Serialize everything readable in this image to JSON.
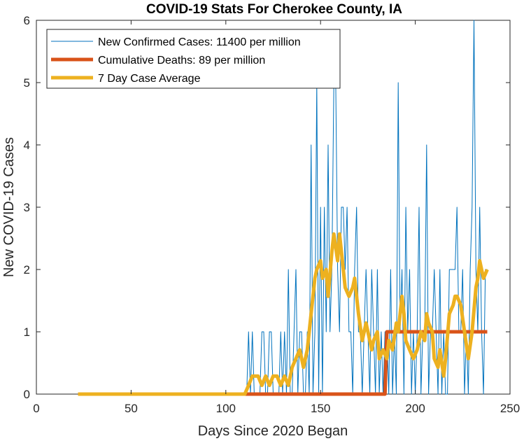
{
  "chart_data": {
    "type": "line",
    "title": "COVID-19 Stats For Cherokee County, IA",
    "xlabel": "Days Since 2020 Began",
    "ylabel": "New COVID-19 Cases",
    "xlim": [
      0,
      250
    ],
    "ylim": [
      0,
      6
    ],
    "xticks": [
      0,
      50,
      100,
      150,
      200,
      250
    ],
    "yticks": [
      0,
      1,
      2,
      3,
      4,
      5,
      6
    ],
    "grid": false,
    "legend_position": "top-left",
    "series": [
      {
        "name": "New Confirmed Cases: 11400 per million",
        "color": "#0072BD",
        "line_width": "thin",
        "points": [
          [
            22,
            0
          ],
          [
            111,
            0
          ],
          [
            112,
            1
          ],
          [
            113,
            0
          ],
          [
            114,
            1
          ],
          [
            115,
            0
          ],
          [
            116,
            0
          ],
          [
            117,
            0
          ],
          [
            118,
            0
          ],
          [
            119,
            1
          ],
          [
            120,
            1
          ],
          [
            121,
            0
          ],
          [
            122,
            0
          ],
          [
            123,
            1
          ],
          [
            124,
            1
          ],
          [
            125,
            0
          ],
          [
            126,
            0
          ],
          [
            127,
            0
          ],
          [
            128,
            0
          ],
          [
            129,
            1
          ],
          [
            130,
            0
          ],
          [
            131,
            1
          ],
          [
            132,
            0
          ],
          [
            133,
            2
          ],
          [
            134,
            0
          ],
          [
            135,
            0
          ],
          [
            136,
            1
          ],
          [
            137,
            2
          ],
          [
            138,
            0
          ],
          [
            139,
            1
          ],
          [
            140,
            1
          ],
          [
            141,
            0
          ],
          [
            142,
            0
          ],
          [
            143,
            1
          ],
          [
            144,
            0
          ],
          [
            145,
            4
          ],
          [
            146,
            0
          ],
          [
            147,
            1
          ],
          [
            148,
            5
          ],
          [
            149,
            0
          ],
          [
            150,
            3
          ],
          [
            151,
            0
          ],
          [
            152,
            3
          ],
          [
            153,
            1
          ],
          [
            154,
            4
          ],
          [
            155,
            1
          ],
          [
            156,
            2
          ],
          [
            157,
            5
          ],
          [
            158,
            5
          ],
          [
            159,
            2
          ],
          [
            160,
            1
          ],
          [
            161,
            3
          ],
          [
            162,
            3
          ],
          [
            163,
            2
          ],
          [
            164,
            3
          ],
          [
            165,
            1
          ],
          [
            166,
            1
          ],
          [
            167,
            0
          ],
          [
            168,
            2
          ],
          [
            169,
            3
          ],
          [
            170,
            1
          ],
          [
            171,
            1
          ],
          [
            172,
            0
          ],
          [
            173,
            1
          ],
          [
            174,
            2
          ],
          [
            175,
            1
          ],
          [
            176,
            0
          ],
          [
            177,
            2
          ],
          [
            178,
            1
          ],
          [
            179,
            0
          ],
          [
            180,
            2
          ],
          [
            181,
            0
          ],
          [
            182,
            1
          ],
          [
            183,
            0
          ],
          [
            184,
            1
          ],
          [
            185,
            1
          ],
          [
            186,
            0
          ],
          [
            187,
            2
          ],
          [
            188,
            0
          ],
          [
            189,
            1
          ],
          [
            190,
            0
          ],
          [
            191,
            5
          ],
          [
            192,
            1
          ],
          [
            193,
            2
          ],
          [
            194,
            0
          ],
          [
            195,
            3
          ],
          [
            196,
            1
          ],
          [
            197,
            2
          ],
          [
            198,
            0
          ],
          [
            199,
            1
          ],
          [
            200,
            0
          ],
          [
            201,
            1
          ],
          [
            202,
            3
          ],
          [
            203,
            0
          ],
          [
            204,
            1
          ],
          [
            205,
            1
          ],
          [
            206,
            4
          ],
          [
            207,
            0
          ],
          [
            208,
            1
          ],
          [
            209,
            1
          ],
          [
            210,
            2
          ],
          [
            211,
            1
          ],
          [
            212,
            0
          ],
          [
            213,
            2
          ],
          [
            214,
            0
          ],
          [
            215,
            1
          ],
          [
            216,
            0
          ],
          [
            217,
            0
          ],
          [
            218,
            2
          ],
          [
            219,
            2
          ],
          [
            220,
            2
          ],
          [
            221,
            2
          ],
          [
            222,
            3
          ],
          [
            223,
            1
          ],
          [
            224,
            1
          ],
          [
            225,
            2
          ],
          [
            226,
            0
          ],
          [
            227,
            1
          ],
          [
            228,
            0
          ],
          [
            229,
            2
          ],
          [
            230,
            3
          ],
          [
            231,
            6
          ],
          [
            232,
            2
          ],
          [
            233,
            1
          ],
          [
            234,
            3
          ],
          [
            235,
            1
          ],
          [
            236,
            0
          ],
          [
            237,
            2
          ],
          [
            238,
            2
          ]
        ]
      },
      {
        "name": "Cumulative Deaths: 89 per million",
        "color": "#D95319",
        "line_width": "thick",
        "points": [
          [
            22,
            0
          ],
          [
            184,
            0
          ],
          [
            185,
            1
          ],
          [
            238,
            1
          ]
        ]
      },
      {
        "name": "7 Day Case Average",
        "color": "#EDB120",
        "line_width": "thick",
        "points": [
          [
            22,
            0
          ],
          [
            110,
            0
          ],
          [
            112,
            0.14
          ],
          [
            114,
            0.29
          ],
          [
            117,
            0.29
          ],
          [
            119,
            0.14
          ],
          [
            121,
            0.29
          ],
          [
            123,
            0.14
          ],
          [
            125,
            0.29
          ],
          [
            127,
            0.29
          ],
          [
            129,
            0.14
          ],
          [
            131,
            0.29
          ],
          [
            133,
            0.14
          ],
          [
            135,
            0.43
          ],
          [
            137,
            0.57
          ],
          [
            139,
            0.71
          ],
          [
            141,
            0.43
          ],
          [
            143,
            0.71
          ],
          [
            145,
            1.29
          ],
          [
            147,
            1.86
          ],
          [
            148,
            2.0
          ],
          [
            150,
            2.14
          ],
          [
            151,
            1.86
          ],
          [
            153,
            2.0
          ],
          [
            154,
            1.57
          ],
          [
            156,
            2.29
          ],
          [
            157,
            2.57
          ],
          [
            159,
            2.14
          ],
          [
            160,
            2.57
          ],
          [
            161,
            2.29
          ],
          [
            163,
            1.71
          ],
          [
            165,
            1.57
          ],
          [
            167,
            1.71
          ],
          [
            168,
            1.86
          ],
          [
            170,
            1.29
          ],
          [
            172,
            0.86
          ],
          [
            174,
            1.14
          ],
          [
            175,
            1.0
          ],
          [
            177,
            0.71
          ],
          [
            178,
            0.86
          ],
          [
            180,
            1.0
          ],
          [
            181,
            0.57
          ],
          [
            183,
            0.71
          ],
          [
            185,
            0.57
          ],
          [
            186,
            0.86
          ],
          [
            188,
            0.71
          ],
          [
            190,
            1.14
          ],
          [
            191,
            1.0
          ],
          [
            193,
            1.57
          ],
          [
            194,
            1.29
          ],
          [
            195,
            0.86
          ],
          [
            197,
            0.71
          ],
          [
            199,
            0.57
          ],
          [
            201,
            0.71
          ],
          [
            203,
            1.0
          ],
          [
            205,
            0.86
          ],
          [
            206,
            1.29
          ],
          [
            207,
            1.14
          ],
          [
            209,
            1.0
          ],
          [
            210,
            0.57
          ],
          [
            212,
            0.43
          ],
          [
            213,
            0.71
          ],
          [
            215,
            0.29
          ],
          [
            216,
            0.57
          ],
          [
            218,
            1.29
          ],
          [
            220,
            1.43
          ],
          [
            221,
            1.57
          ],
          [
            222,
            1.57
          ],
          [
            224,
            1.43
          ],
          [
            226,
            1.0
          ],
          [
            228,
            0.57
          ],
          [
            230,
            1.0
          ],
          [
            232,
            1.71
          ],
          [
            233,
            1.86
          ],
          [
            234,
            2.14
          ],
          [
            236,
            1.86
          ],
          [
            238,
            2.0
          ]
        ]
      }
    ]
  }
}
